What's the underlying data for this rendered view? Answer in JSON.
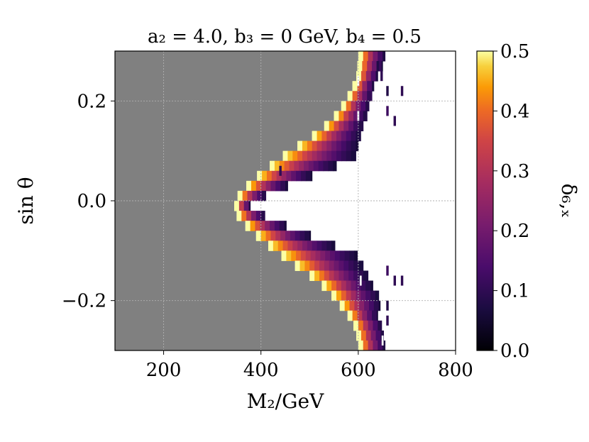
{
  "chart_data": {
    "type": "heatmap",
    "title": "a₂ = 4.0,  b₃ = 0  GeV,  b₄ = 0.5",
    "xlabel": "M₂/GeV",
    "ylabel": "sin θ",
    "colorbar_label": "δ₆,ₓ",
    "xlim": [
      100,
      800
    ],
    "ylim": [
      -0.3,
      0.3
    ],
    "clim": [
      0.0,
      0.5
    ],
    "colormap": "inferno",
    "grid": true,
    "x_ticks": [
      200,
      400,
      600,
      800
    ],
    "x_tick_labels": [
      "200",
      "400",
      "600",
      "800"
    ],
    "y_ticks": [
      -0.2,
      0.0,
      0.2
    ],
    "y_tick_labels": [
      "−0.2",
      "0.0",
      "0.2"
    ],
    "c_ticks": [
      0.0,
      0.1,
      0.2,
      0.3,
      0.4,
      0.5
    ],
    "c_tick_labels": [
      "0.0",
      "0.1",
      "0.2",
      "0.3",
      "0.4",
      "0.5"
    ],
    "excluded_region_color": "#808080",
    "band_cells": [
      {
        "y": 0.29,
        "x_start": 600,
        "x_end": 655
      },
      {
        "y": 0.27,
        "x_start": 598,
        "x_end": 650
      },
      {
        "y": 0.25,
        "x_start": 596,
        "x_end": 640
      },
      {
        "y": 0.23,
        "x_start": 588,
        "x_end": 632
      },
      {
        "y": 0.21,
        "x_start": 578,
        "x_end": 628
      },
      {
        "y": 0.19,
        "x_start": 565,
        "x_end": 622
      },
      {
        "y": 0.17,
        "x_start": 550,
        "x_end": 618
      },
      {
        "y": 0.15,
        "x_start": 530,
        "x_end": 610
      },
      {
        "y": 0.13,
        "x_start": 505,
        "x_end": 605
      },
      {
        "y": 0.11,
        "x_start": 475,
        "x_end": 600
      },
      {
        "y": 0.09,
        "x_start": 445,
        "x_end": 595
      },
      {
        "y": 0.07,
        "x_start": 418,
        "x_end": 555
      },
      {
        "y": 0.05,
        "x_start": 392,
        "x_end": 505
      },
      {
        "y": 0.03,
        "x_start": 370,
        "x_end": 455
      },
      {
        "y": 0.01,
        "x_start": 352,
        "x_end": 410
      },
      {
        "y": -0.01,
        "x_start": 345,
        "x_end": 378
      },
      {
        "y": -0.03,
        "x_start": 350,
        "x_end": 408
      },
      {
        "y": -0.05,
        "x_start": 368,
        "x_end": 452
      },
      {
        "y": -0.07,
        "x_start": 390,
        "x_end": 502
      },
      {
        "y": -0.09,
        "x_start": 415,
        "x_end": 552
      },
      {
        "y": -0.11,
        "x_start": 442,
        "x_end": 598
      },
      {
        "y": -0.13,
        "x_start": 470,
        "x_end": 610
      },
      {
        "y": -0.15,
        "x_start": 500,
        "x_end": 620
      },
      {
        "y": -0.17,
        "x_start": 525,
        "x_end": 630
      },
      {
        "y": -0.19,
        "x_start": 545,
        "x_end": 642
      },
      {
        "y": -0.21,
        "x_start": 562,
        "x_end": 645
      },
      {
        "y": -0.23,
        "x_start": 578,
        "x_end": 640
      },
      {
        "y": -0.25,
        "x_start": 590,
        "x_end": 648
      },
      {
        "y": -0.27,
        "x_start": 596,
        "x_end": 652
      },
      {
        "y": -0.29,
        "x_start": 600,
        "x_end": 655
      }
    ],
    "band_value_profile": [
      {
        "fraction": 0.0,
        "value": 0.5
      },
      {
        "fraction": 0.15,
        "value": 0.42
      },
      {
        "fraction": 0.35,
        "value": 0.3
      },
      {
        "fraction": 0.55,
        "value": 0.2
      },
      {
        "fraction": 0.75,
        "value": 0.12
      },
      {
        "fraction": 1.0,
        "value": 0.05
      }
    ],
    "isolated_cells": [
      {
        "x": 640,
        "y": 0.27,
        "value": 0.08
      },
      {
        "x": 648,
        "y": 0.25,
        "value": 0.1
      },
      {
        "x": 660,
        "y": 0.22,
        "value": 0.08
      },
      {
        "x": 690,
        "y": 0.22,
        "value": 0.1
      },
      {
        "x": 660,
        "y": 0.18,
        "value": 0.12
      },
      {
        "x": 675,
        "y": 0.16,
        "value": 0.1
      },
      {
        "x": 440,
        "y": 0.06,
        "value": 0.1
      },
      {
        "x": 660,
        "y": -0.14,
        "value": 0.12
      },
      {
        "x": 675,
        "y": -0.16,
        "value": 0.1
      },
      {
        "x": 690,
        "y": -0.16,
        "value": 0.1
      },
      {
        "x": 660,
        "y": -0.21,
        "value": 0.08
      },
      {
        "x": 660,
        "y": -0.24,
        "value": 0.1
      },
      {
        "x": 650,
        "y": -0.28,
        "value": 0.08
      }
    ],
    "gaps": [
      {
        "x": 600,
        "y": 0.24
      },
      {
        "x": 600,
        "y": 0.17
      },
      {
        "x": 620,
        "y": 0.12
      },
      {
        "x": 605,
        "y": -0.16
      },
      {
        "x": 650,
        "y": -0.28
      }
    ]
  }
}
